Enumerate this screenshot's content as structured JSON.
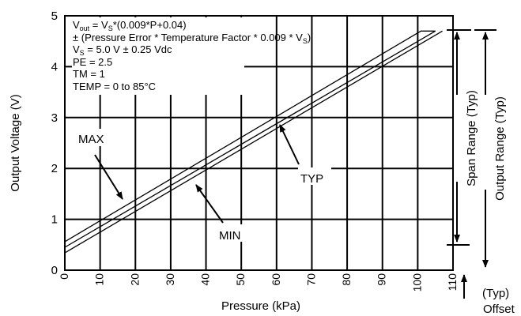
{
  "chart_data": {
    "type": "line",
    "xlabel": "Pressure (kPa)",
    "ylabel": "Output Voltage (V)",
    "xlim": [
      0,
      110
    ],
    "ylim": [
      0,
      5
    ],
    "x_ticks": [
      "0",
      "10",
      "20",
      "30",
      "40",
      "50",
      "60",
      "70",
      "80",
      "90",
      "100",
      "110"
    ],
    "y_ticks": [
      "0",
      "1",
      "2",
      "3",
      "4",
      "5"
    ],
    "grid": true,
    "series": [
      {
        "name": "MAX",
        "x": [
          0,
          100.9,
          105
        ],
        "y": [
          0.56,
          4.7,
          4.7
        ]
      },
      {
        "name": "TYP",
        "x": [
          0,
          105
        ],
        "y": [
          0.45,
          4.7
        ]
      },
      {
        "name": "MIN",
        "x": [
          0,
          107
        ],
        "y": [
          0.34,
          4.7
        ]
      }
    ],
    "formula": {
      "l1_pre": "V",
      "l1_sub": "out",
      "l1_mid": " = V",
      "l1_sub2": "S",
      "l1_post": "*(0.009*P+0.04)",
      "l2_pre": "± (Pressure Error * Temperature Factor * 0.009 * V",
      "l2_sub": "S",
      "l2_post": ")",
      "l3_pre": "V",
      "l3_sub": "S",
      "l3_post": " = 5.0 V ± 0.25 Vdc",
      "l4": "PE = 2.5",
      "l5": "TM = 1",
      "l6": "TEMP = 0 to 85°C"
    },
    "annotations": {
      "max": "MAX",
      "min": "MIN",
      "typ": "TYP",
      "span_range": "Span Range (Typ)",
      "output_range": "Output Range (Typ)",
      "offset_typ": "(Typ)",
      "offset": "Offset"
    }
  }
}
